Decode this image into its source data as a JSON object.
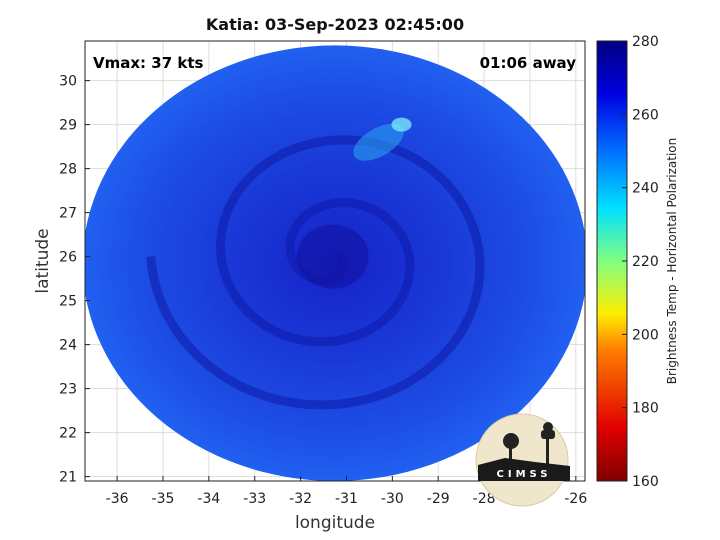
{
  "chart_data": {
    "type": "heatmap",
    "title": "Katia: 03-Sep-2023 02:45:00",
    "xlabel": "longitude",
    "ylabel": "latitude",
    "xlim": [
      -36.7,
      -25.8
    ],
    "ylim": [
      20.9,
      30.9
    ],
    "x_ticks": [
      -36,
      -35,
      -34,
      -33,
      -32,
      -31,
      -30,
      -29,
      -28,
      -27,
      -26
    ],
    "y_ticks": [
      21,
      22,
      23,
      24,
      25,
      26,
      27,
      28,
      29,
      30
    ],
    "grid": true,
    "colorbar": {
      "label": "Brightness Temp - Horizontal Polarization",
      "range": [
        160,
        280
      ],
      "ticks": [
        160,
        180,
        200,
        220,
        240,
        260,
        280
      ],
      "colormap": "jet"
    },
    "swath": {
      "center_lon": -31.25,
      "center_lat": 25.85,
      "radius_deg_lon": 5.5,
      "radius_deg_lat": 4.95,
      "typical_value": 262,
      "storm_center": [
        -31.3,
        26.0
      ],
      "warm_band_value": 242
    },
    "annotations": {
      "vmax": "Vmax: 37 kts",
      "time_away": "01:06 away"
    }
  },
  "logo": {
    "text": "CIMSS"
  }
}
